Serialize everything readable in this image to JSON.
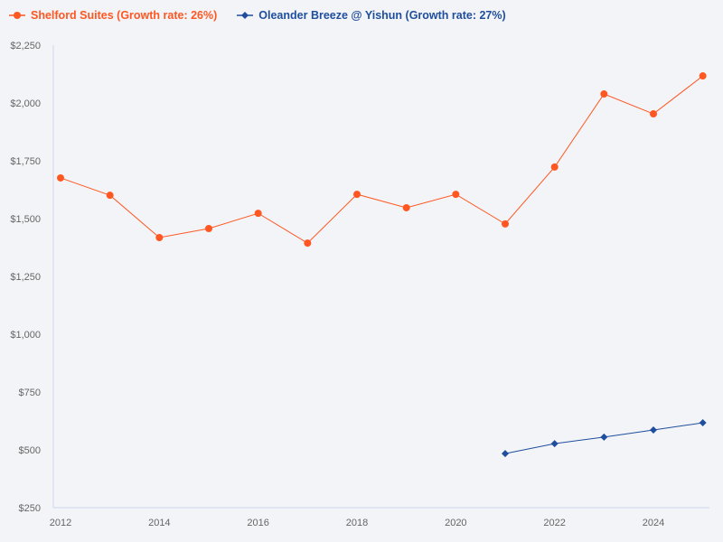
{
  "chart_data": {
    "type": "line",
    "title": "",
    "xlabel": "",
    "ylabel": "",
    "xlim": [
      2012,
      2025
    ],
    "ylim": [
      250,
      2250
    ],
    "y_ticks": [
      250,
      500,
      750,
      1000,
      1250,
      1500,
      1750,
      2000,
      2250
    ],
    "y_tick_labels": [
      "$250",
      "$500",
      "$750",
      "$1,000",
      "$1,250",
      "$1,500",
      "$1,750",
      "$2,000",
      "$2,250"
    ],
    "x_ticks": [
      2012,
      2014,
      2016,
      2018,
      2020,
      2022,
      2024
    ],
    "x_tick_labels": [
      "2012",
      "2014",
      "2016",
      "2018",
      "2020",
      "2022",
      "2024"
    ],
    "legend_position": "top-left",
    "grid": false,
    "series": [
      {
        "name": "Shelford Suites (Growth rate: 26%)",
        "color": "#ff5722",
        "marker": "circle",
        "x": [
          2012,
          2013,
          2014,
          2015,
          2016,
          2017,
          2018,
          2019,
          2020,
          2021,
          2022,
          2023,
          2024,
          2025
        ],
        "values": [
          1676,
          1601,
          1418,
          1457,
          1523,
          1394,
          1605,
          1547,
          1605,
          1477,
          1723,
          2039,
          1953,
          2117
        ]
      },
      {
        "name": "Oleander Breeze @ Yishun (Growth rate: 27%)",
        "color": "#1f4e9e",
        "marker": "diamond",
        "x": [
          2021,
          2022,
          2023,
          2024,
          2025
        ],
        "values": [
          484,
          527,
          555,
          586,
          617
        ]
      }
    ]
  }
}
